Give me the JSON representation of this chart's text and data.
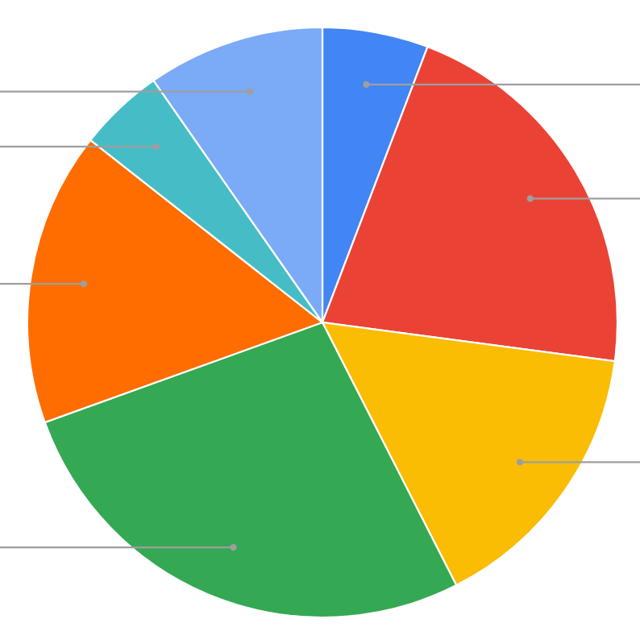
{
  "chart_data": {
    "type": "pie",
    "categories": [
      null,
      null,
      null,
      null,
      null,
      null,
      null
    ],
    "values": [
      5.8,
      21.3,
      15.4,
      27.0,
      16.1,
      4.7,
      9.7
    ],
    "colors": [
      "#4285f4",
      "#ea4335",
      "#fbbc04",
      "#34a853",
      "#ff6d01",
      "#46bdc6",
      "#7baaf7"
    ]
  }
}
